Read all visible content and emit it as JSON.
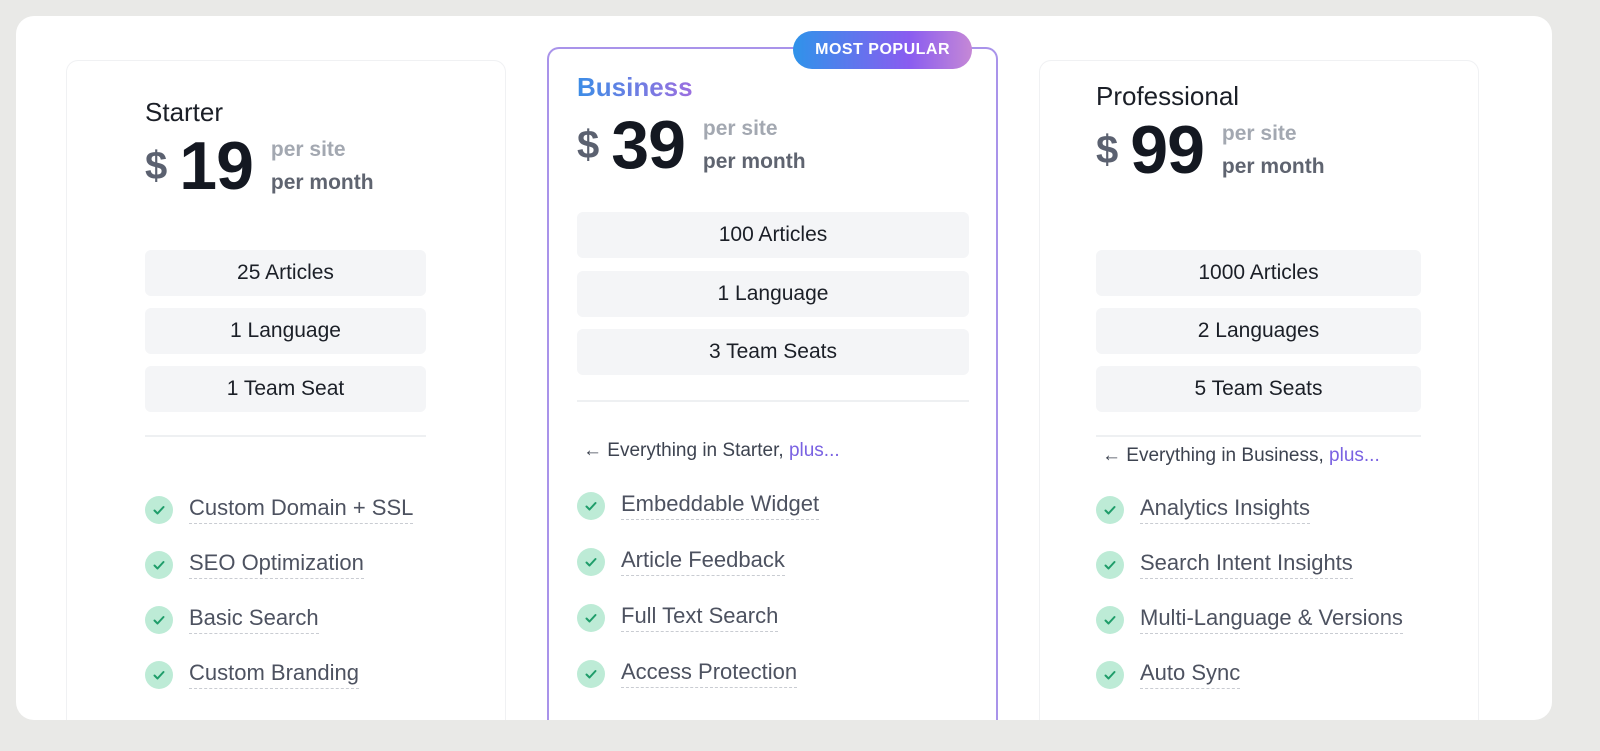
{
  "plans": [
    {
      "name": "Starter",
      "currency": "$",
      "price": "19",
      "per1": "per site",
      "per2": "per month",
      "limits": [
        "25 Articles",
        "1 Language",
        "1 Team Seat"
      ],
      "features": [
        "Custom Domain + SSL",
        "SEO Optimization",
        "Basic Search",
        "Custom Branding"
      ]
    },
    {
      "name": "Business",
      "badge": "MOST POPULAR",
      "currency": "$",
      "price": "39",
      "per1": "per site",
      "per2": "per month",
      "limits": [
        "100 Articles",
        "1 Language",
        "3 Team Seats"
      ],
      "includes": "← Everything in Starter,",
      "plus": "plus...",
      "features": [
        "Embeddable Widget",
        "Article Feedback",
        "Full Text Search",
        "Access Protection"
      ]
    },
    {
      "name": "Professional",
      "currency": "$",
      "price": "99",
      "per1": "per site",
      "per2": "per month",
      "limits": [
        "1000 Articles",
        "2 Languages",
        "5 Team Seats"
      ],
      "includes": "← Everything in Business,",
      "plus": "plus...",
      "features": [
        "Analytics Insights",
        "Search Intent Insights",
        "Multi-Language & Versions",
        "Auto Sync"
      ]
    }
  ],
  "colors": {
    "accent": "#8a5cf0",
    "check": "#bdebd6",
    "checkmark": "#1f9d6a"
  }
}
